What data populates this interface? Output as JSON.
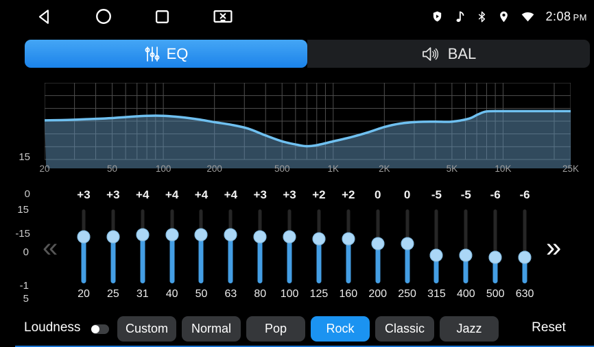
{
  "status_bar": {
    "time": "2:08",
    "meridiem": "PM",
    "nav_icons": [
      "back-icon",
      "home-icon",
      "recents-icon",
      "screen-off-icon"
    ],
    "status_icons": [
      "play-protect-shield-icon",
      "music-note-icon",
      "bluetooth-icon",
      "location-icon",
      "wifi-icon"
    ]
  },
  "tabs": [
    {
      "id": "eq",
      "label": "EQ",
      "icon": "sliders-icon",
      "active": true
    },
    {
      "id": "bal",
      "label": "BAL",
      "icon": "speaker-icon",
      "active": false
    }
  ],
  "chart": {
    "type": "area",
    "ylim": [
      -15,
      15
    ],
    "y_ticks": [
      "15",
      "0",
      "-15"
    ],
    "x_ticks": [
      {
        "label": "20",
        "f": 20
      },
      {
        "label": "50",
        "f": 50
      },
      {
        "label": "100",
        "f": 100
      },
      {
        "label": "200",
        "f": 200
      },
      {
        "label": "500",
        "f": 500
      },
      {
        "label": "1K",
        "f": 1000
      },
      {
        "label": "2K",
        "f": 2000
      },
      {
        "label": "5K",
        "f": 5000
      },
      {
        "label": "10K",
        "f": 10000
      },
      {
        "label": "25K",
        "f": 25000
      }
    ],
    "grid_freqs": [
      20,
      30,
      40,
      50,
      60,
      70,
      80,
      90,
      100,
      200,
      300,
      400,
      500,
      600,
      700,
      800,
      900,
      1000,
      2000,
      3000,
      4000,
      5000,
      6000,
      7000,
      8000,
      9000,
      10000,
      20000,
      25000
    ],
    "grid_db": [
      15,
      10,
      5,
      0,
      -5,
      -10,
      -15
    ],
    "curve_points": [
      [
        20,
        0.3
      ],
      [
        25,
        0.4
      ],
      [
        31,
        0.6
      ],
      [
        40,
        0.9
      ],
      [
        50,
        1.2
      ],
      [
        63,
        1.7
      ],
      [
        80,
        2.1
      ],
      [
        100,
        2.1
      ],
      [
        125,
        1.6
      ],
      [
        160,
        0.7
      ],
      [
        200,
        -0.4
      ],
      [
        250,
        -1.4
      ],
      [
        315,
        -2.9
      ],
      [
        400,
        -5.6
      ],
      [
        500,
        -7.9
      ],
      [
        630,
        -9.4
      ],
      [
        700,
        -9.8
      ],
      [
        800,
        -9.4
      ],
      [
        1000,
        -7.9
      ],
      [
        1250,
        -6.4
      ],
      [
        1600,
        -4.4
      ],
      [
        2000,
        -2.3
      ],
      [
        2500,
        -0.9
      ],
      [
        3150,
        -0.3
      ],
      [
        4000,
        -0.2
      ],
      [
        5000,
        -0.2
      ],
      [
        6300,
        1.0
      ],
      [
        7100,
        2.6
      ],
      [
        8000,
        3.8
      ],
      [
        10000,
        3.9
      ],
      [
        12500,
        3.9
      ],
      [
        16000,
        3.9
      ],
      [
        20000,
        3.9
      ],
      [
        25000,
        3.9
      ]
    ],
    "line_color": "#6fc0f0",
    "fill_color": "rgba(97,147,186,0.5)",
    "grid_color": "#4f4f4f"
  },
  "equalizer": {
    "range": [
      -15,
      15
    ],
    "scale_labels": [
      "15",
      "0",
      "-1\n5"
    ],
    "left_chevron": "«",
    "right_chevron": "»",
    "bands": [
      {
        "freq": "20",
        "gain": 3,
        "gain_label": "+3"
      },
      {
        "freq": "25",
        "gain": 3,
        "gain_label": "+3"
      },
      {
        "freq": "31",
        "gain": 4,
        "gain_label": "+4"
      },
      {
        "freq": "40",
        "gain": 4,
        "gain_label": "+4"
      },
      {
        "freq": "50",
        "gain": 4,
        "gain_label": "+4"
      },
      {
        "freq": "63",
        "gain": 4,
        "gain_label": "+4"
      },
      {
        "freq": "80",
        "gain": 3,
        "gain_label": "+3"
      },
      {
        "freq": "100",
        "gain": 3,
        "gain_label": "+3"
      },
      {
        "freq": "125",
        "gain": 2,
        "gain_label": "+2"
      },
      {
        "freq": "160",
        "gain": 2,
        "gain_label": "+2"
      },
      {
        "freq": "200",
        "gain": 0,
        "gain_label": "0"
      },
      {
        "freq": "250",
        "gain": 0,
        "gain_label": "0"
      },
      {
        "freq": "315",
        "gain": -5,
        "gain_label": "-5"
      },
      {
        "freq": "400",
        "gain": -5,
        "gain_label": "-5"
      },
      {
        "freq": "500",
        "gain": -6,
        "gain_label": "-6"
      },
      {
        "freq": "630",
        "gain": -6,
        "gain_label": "-6"
      }
    ],
    "slider_colors": {
      "rail": "#262626",
      "fill": "#449ee4",
      "knob": "#abd7f6"
    }
  },
  "footer": {
    "loudness_label": "Loudness",
    "loudness_on": false,
    "presets": [
      {
        "label": "Custom",
        "active": false
      },
      {
        "label": "Normal",
        "active": false
      },
      {
        "label": "Pop",
        "active": false
      },
      {
        "label": "Rock",
        "active": true
      },
      {
        "label": "Classic",
        "active": false
      },
      {
        "label": "Jazz",
        "active": false
      }
    ],
    "reset_label": "Reset",
    "accent_color": "#1b93f1"
  }
}
